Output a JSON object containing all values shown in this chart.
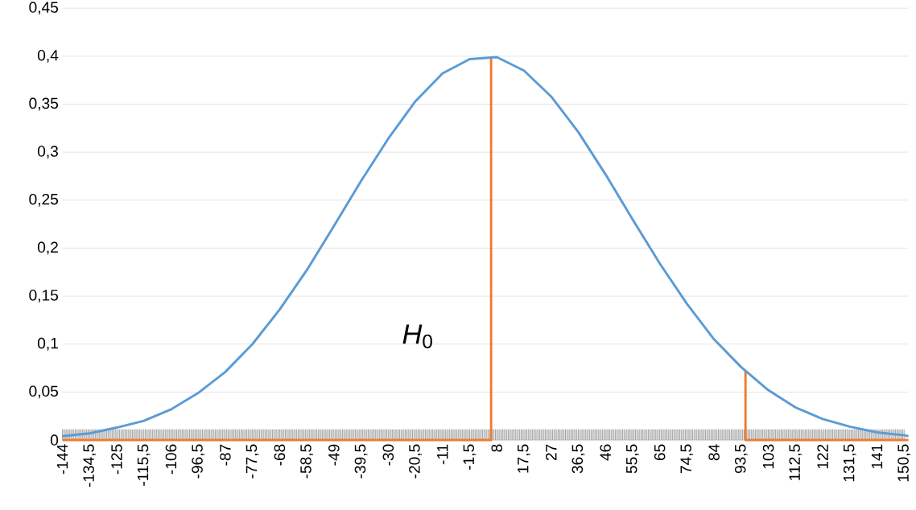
{
  "chart_data": {
    "type": "line",
    "grid": "y",
    "legend": false,
    "marker": "none",
    "line_style": "solid",
    "xlim": [
      -144,
      152
    ],
    "ylim": [
      0,
      0.45
    ],
    "xticks": [
      -144,
      {
        "value": -134.5,
        "label": "-134,5"
      },
      -125,
      {
        "value": -115.5,
        "label": "-115,5"
      },
      -106,
      {
        "value": -96.5,
        "label": "-96,5"
      },
      -87,
      {
        "value": -77.5,
        "label": "-77,5"
      },
      -68,
      {
        "value": -58.5,
        "label": "-58,5"
      },
      -49,
      {
        "value": -39.5,
        "label": "-39,5"
      },
      -30,
      {
        "value": -20.5,
        "label": "-20,5"
      },
      -11,
      {
        "value": -1.5,
        "label": "-1,5"
      },
      8,
      {
        "value": 17.5,
        "label": "17,5"
      },
      27,
      {
        "value": 36.5,
        "label": "36,5"
      },
      46,
      {
        "value": 55.5,
        "label": "55,5"
      },
      65,
      {
        "value": 74.5,
        "label": "74,5"
      },
      84,
      {
        "value": 93.5,
        "label": "93,5"
      },
      103,
      {
        "value": 112.5,
        "label": "112,5"
      },
      122,
      {
        "value": 131.5,
        "label": "131,5"
      },
      141,
      {
        "value": 150.5,
        "label": "150,5"
      }
    ],
    "yticks": [
      0,
      {
        "value": 0.05,
        "label": "0,05"
      },
      {
        "value": 0.1,
        "label": "0,1"
      },
      {
        "value": 0.15,
        "label": "0,15"
      },
      {
        "value": 0.2,
        "label": "0,2"
      },
      {
        "value": 0.25,
        "label": "0,25"
      },
      {
        "value": 0.3,
        "label": "0,3"
      },
      {
        "value": 0.35,
        "label": "0,35"
      },
      {
        "value": 0.4,
        "label": "0,4"
      },
      {
        "value": 0.45,
        "label": "0,45"
      }
    ],
    "annotations": [
      "*H*$_{0}$"
    ],
    "series": [
      {
        "color": "#ed7d31",
        "x": [
          -144,
          6,
          6,
          50,
          95,
          95,
          152
        ],
        "values": [
          0,
          0,
          0.399,
          null,
          0.072,
          0,
          0
        ]
      },
      {
        "color": "#5b9bd5",
        "x": [
          -144,
          -134.5,
          -125,
          -115.5,
          -106,
          -96.5,
          -87,
          -77.5,
          -68,
          -58.5,
          -49,
          -39.5,
          -30,
          -20.5,
          -11,
          -1.5,
          8,
          17.5,
          27,
          36.5,
          46,
          55.5,
          65,
          74.5,
          84,
          93.5,
          103,
          112.5,
          122,
          131.5,
          141,
          150.5,
          152
        ],
        "values": [
          0.004,
          0.007,
          0.013,
          0.02,
          0.032,
          0.049,
          0.071,
          0.1,
          0.136,
          0.177,
          0.223,
          0.27,
          0.314,
          0.353,
          0.382,
          0.397,
          0.399,
          0.385,
          0.358,
          0.321,
          0.277,
          0.23,
          0.184,
          0.142,
          0.105,
          0.076,
          0.052,
          0.034,
          0.022,
          0.014,
          0.008,
          0.005,
          0.004
        ]
      }
    ]
  }
}
